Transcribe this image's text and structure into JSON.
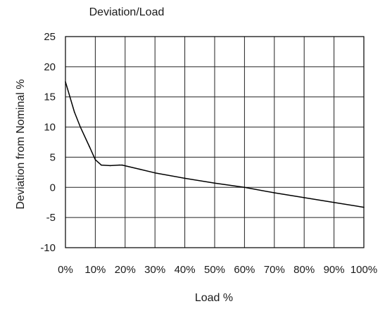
{
  "chart_data": {
    "type": "line",
    "title": "Deviation/Load",
    "xlabel": "Load %",
    "ylabel": "Deviation from Nominal %",
    "xlim": [
      0,
      100
    ],
    "ylim": [
      -10,
      25
    ],
    "x_ticks": [
      0,
      10,
      20,
      30,
      40,
      50,
      60,
      70,
      80,
      90,
      100
    ],
    "x_tick_labels": [
      "0%",
      "10%",
      "20%",
      "30%",
      "40%",
      "50%",
      "60%",
      "70%",
      "80%",
      "90%",
      "100%"
    ],
    "y_ticks": [
      -10,
      -5,
      0,
      5,
      10,
      15,
      20,
      25
    ],
    "y_tick_labels": [
      "-10",
      "-5",
      "0",
      "5",
      "10",
      "15",
      "20",
      "25"
    ],
    "grid": true,
    "legend": "none",
    "line_color": "#000000",
    "series": [
      {
        "x": [
          0,
          3,
          5,
          8,
          10,
          12,
          15,
          18,
          19,
          25,
          30,
          40,
          50,
          60,
          70,
          80,
          90,
          100
        ],
        "y": [
          17.5,
          12.5,
          10,
          6.8,
          4.6,
          3.7,
          3.6,
          3.7,
          3.7,
          3.0,
          2.4,
          1.5,
          0.7,
          0.0,
          -0.9,
          -1.7,
          -2.5,
          -3.3
        ]
      }
    ]
  }
}
